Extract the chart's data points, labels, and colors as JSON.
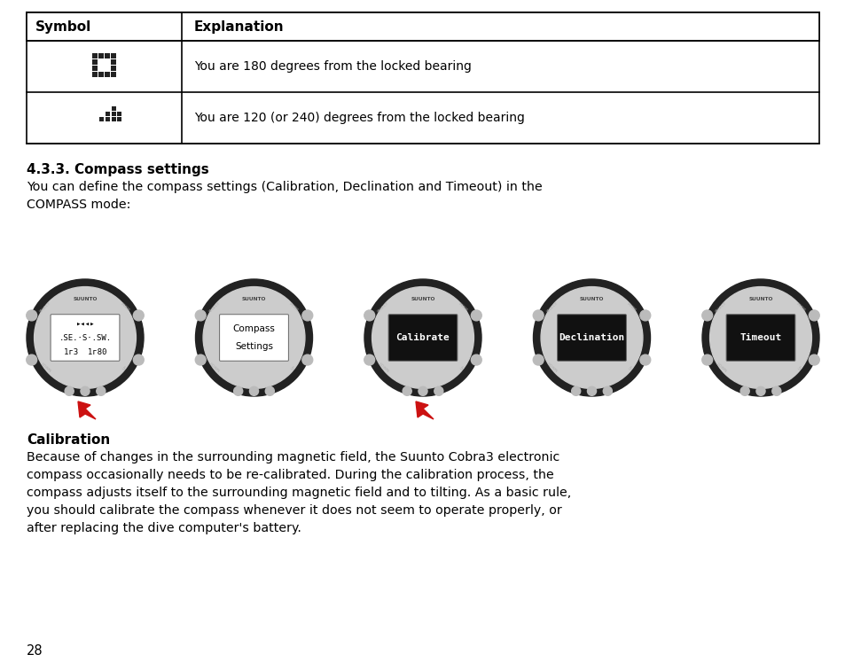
{
  "bg_color": "#ffffff",
  "table_header": [
    "Symbol",
    "Explanation"
  ],
  "table_rows": [
    "You are 180 degrees from the locked bearing",
    "You are 120 (or 240) degrees from the locked bearing"
  ],
  "section_title": "4.3.3. Compass settings",
  "section_body": "You can define the compass settings (Calibration, Declination and Timeout) in the\nCOMPASS mode:",
  "watches": [
    {
      "screen_text": [
        "▸◂◂▸",
        ".SE.·S·.SW.",
        "1г3  1г80"
      ],
      "black_bg": false
    },
    {
      "screen_text": [
        "Compass",
        "Settings"
      ],
      "black_bg": false
    },
    {
      "screen_text": [
        "Calibrate"
      ],
      "black_bg": true
    },
    {
      "screen_text": [
        "Declination"
      ],
      "black_bg": true
    },
    {
      "screen_text": [
        "Timeout"
      ],
      "black_bg": true
    }
  ],
  "arrow_watch_indices": [
    0,
    2
  ],
  "calibration_title": "Calibration",
  "calibration_body": "Because of changes in the surrounding magnetic field, the Suunto Cobra3 electronic\ncompass occasionally needs to be re-calibrated. During the calibration process, the\ncompass adjusts itself to the surrounding magnetic field and to tilting. As a basic rule,\nyou should calibrate the compass whenever it does not seem to operate properly, or\nafter replacing the dive computer's battery.",
  "page_number": "28",
  "watch_bezel_color": "#222222",
  "watch_ring_color": "#cccccc",
  "watch_screen_white": "#ffffff",
  "watch_screen_black": "#111111",
  "watch_text_black": "#000000",
  "watch_text_white": "#ffffff",
  "arrow_color": "#cc1111",
  "table_border": "#000000",
  "text_color": "#000000"
}
